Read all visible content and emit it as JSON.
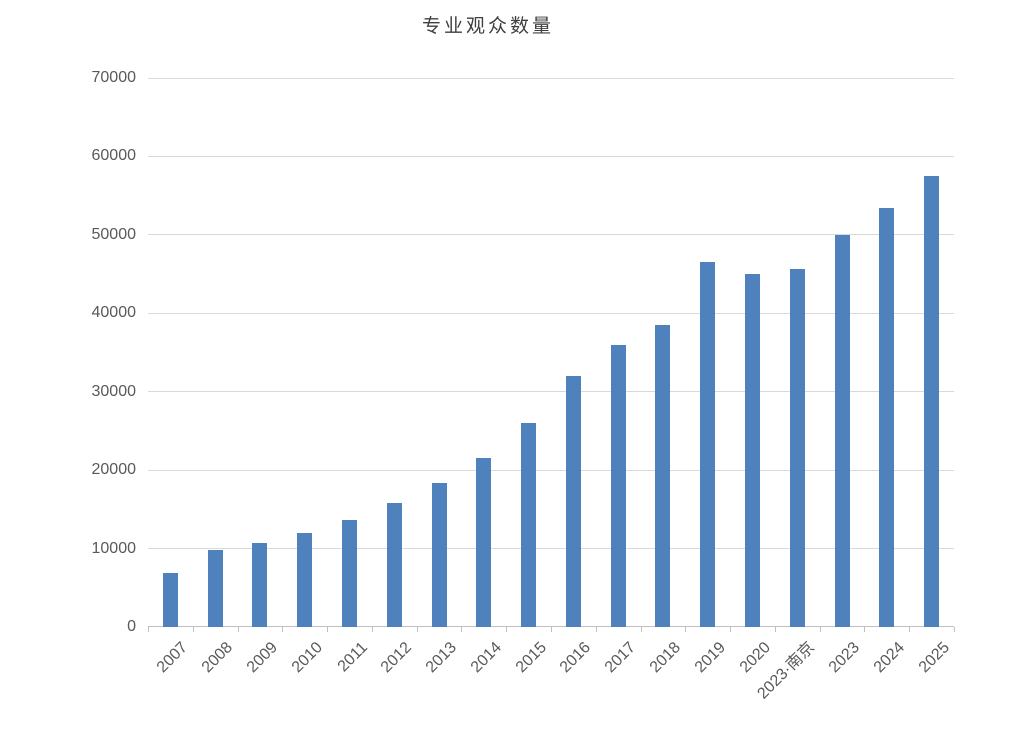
{
  "chart_data": {
    "type": "bar",
    "title": "专业观众数量",
    "categories": [
      "2007",
      "2008",
      "2009",
      "2010",
      "2011",
      "2012",
      "2013",
      "2014",
      "2015",
      "2016",
      "2017",
      "2018",
      "2019",
      "2020",
      "2023·南京",
      "2023",
      "2024",
      "2025"
    ],
    "values": [
      6900,
      9800,
      10700,
      12000,
      13600,
      15800,
      18300,
      21500,
      26000,
      32000,
      36000,
      38500,
      46600,
      45000,
      45700,
      50000,
      53400,
      57500
    ],
    "xlabel": "",
    "ylabel": "",
    "ylim": [
      0,
      70000
    ],
    "yticks": [
      0,
      10000,
      20000,
      30000,
      40000,
      50000,
      60000,
      70000
    ],
    "grid": true,
    "legend": false,
    "x_label_rotation": -45,
    "colors": {
      "bar": "#4f81bd",
      "gridline": "#d9d9d9",
      "axis_line": "#bfbfbf",
      "tick": "#bfbfbf",
      "axis_label": "#595959",
      "title": "#3f3f3f",
      "background": "#ffffff"
    }
  }
}
